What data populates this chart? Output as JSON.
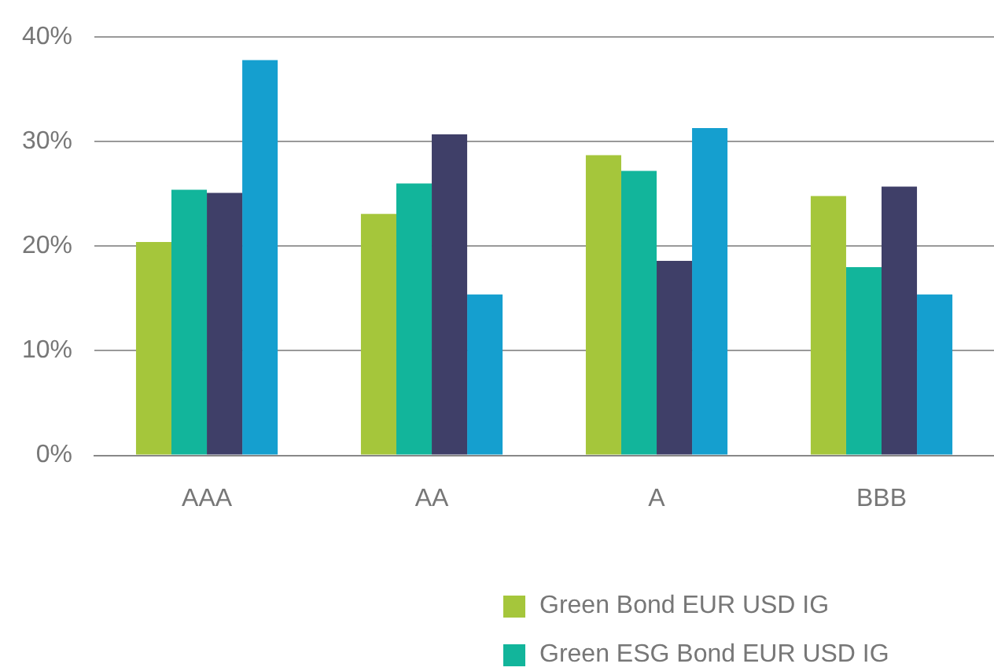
{
  "chart_data": {
    "type": "bar",
    "categories": [
      "AAA",
      "AA",
      "A",
      "BBB"
    ],
    "series": [
      {
        "name": "Green Bond EUR USD IG",
        "color": "#a5c63b",
        "values": [
          20.4,
          23.1,
          28.7,
          24.8
        ]
      },
      {
        "name": "Green ESG Bond EUR USD IG",
        "color": "#12b59b",
        "values": [
          25.4,
          26.0,
          27.2,
          18.0
        ]
      },
      {
        "color": "#3f3f68",
        "values": [
          25.1,
          30.7,
          18.6,
          25.7
        ]
      },
      {
        "color": "#159fcf",
        "values": [
          37.8,
          15.4,
          31.3,
          15.4
        ]
      }
    ],
    "ylim": [
      0,
      40
    ],
    "yticks": [
      {
        "value": 0,
        "label": "0%"
      },
      {
        "value": 10,
        "label": "10%"
      },
      {
        "value": 20,
        "label": "20%"
      },
      {
        "value": 30,
        "label": "30%"
      },
      {
        "value": 40,
        "label": "40%"
      }
    ],
    "grid": "y",
    "legend": "bottom"
  }
}
